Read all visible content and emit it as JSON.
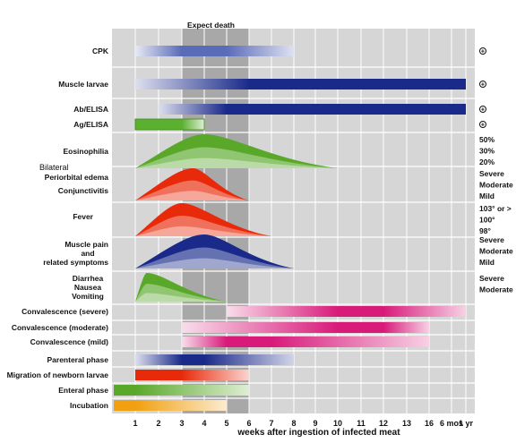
{
  "chart_data": {
    "type": "gantt",
    "annotation": "Expect death",
    "xlabel": "weeks after ingestion of infected meat",
    "x_ticks": [
      "1",
      "2",
      "3",
      "4",
      "5",
      "6",
      "7",
      "8",
      "9",
      "10",
      "11",
      "12",
      "13",
      "16",
      "6 mos",
      "1 yr"
    ],
    "shaded_band": {
      "from": "3",
      "to": "6"
    },
    "rows": [
      {
        "label": "CPK",
        "kind": "bar",
        "color": "#5a6bb8",
        "start": "1",
        "peak_start": "3",
        "peak_end": "5",
        "end": "8",
        "note": "+"
      },
      {
        "label": "Muscle larvae",
        "kind": "bar",
        "color": "#1a2a8a",
        "start": "1",
        "peak_start": "6",
        "peak_end": "1 yr",
        "end": "1 yr",
        "note": "+"
      },
      {
        "label": "Ab/ELISA",
        "kind": "bar",
        "color": "#1a2a8a",
        "start": "2",
        "peak_start": "5",
        "peak_end": "1 yr",
        "end": "1 yr",
        "note": "+"
      },
      {
        "label": "Ag/ELISA",
        "kind": "bar",
        "color": "#5cb030",
        "start": "1",
        "peak_start": "1",
        "peak_end": "3",
        "end": "4",
        "note": "+"
      },
      {
        "label": "Eosinophilia",
        "kind": "area",
        "color": "#5aa82a",
        "start": "1",
        "peak": "4",
        "end": "10",
        "levels": [
          "50%",
          "30%",
          "20%"
        ]
      },
      {
        "label": "Periorbital edema",
        "kind": "area",
        "color": "#e82a0a",
        "start": "1",
        "peak": "3.5",
        "end": "6",
        "levels": [
          "Severe",
          "Moderate",
          "Mild"
        ]
      },
      {
        "label": "Conjunctivitis",
        "kind": "area",
        "color": "#e82a0a",
        "start": "1",
        "peak": "3.5",
        "end": "6",
        "levels": []
      },
      {
        "label": "Fever",
        "kind": "area",
        "color": "#e82a0a",
        "start": "1",
        "peak": "3",
        "end": "7",
        "levels": [
          "103° or >",
          "100°",
          "98°"
        ]
      },
      {
        "label": "Muscle pain and related symptoms",
        "kind": "area",
        "color": "#1a2a8a",
        "start": "1",
        "peak": "4",
        "end": "8",
        "levels": [
          "Severe",
          "Moderate",
          "Mild"
        ]
      },
      {
        "label": "Diarrhea",
        "kind": "area",
        "color": "#5aa82a",
        "start": "1",
        "peak": "1.5",
        "end": "5",
        "levels": [
          "Severe",
          "Moderate"
        ]
      },
      {
        "label": "Nausea",
        "kind": "area",
        "color": "#5aa82a",
        "start": "1",
        "peak": "1.5",
        "end": "5",
        "levels": []
      },
      {
        "label": "Vomiting",
        "kind": "area",
        "color": "#5aa82a",
        "start": "1",
        "peak": "1.5",
        "end": "5",
        "levels": []
      },
      {
        "label": "Convalescence (severe)",
        "kind": "bar",
        "color": "#d81a7a",
        "start": "5",
        "peak_start": "10",
        "peak_end": "12",
        "end": "1 yr"
      },
      {
        "label": "Convalescence (moderate)",
        "kind": "bar",
        "color": "#d81a7a",
        "start": "3",
        "peak_start": "10",
        "peak_end": "12",
        "end": "16"
      },
      {
        "label": "Convalescence (mild)",
        "kind": "bar",
        "color": "#d81a7a",
        "start": "3",
        "peak_start": "5",
        "peak_end": "7",
        "end": "16"
      },
      {
        "label": "Parenteral phase",
        "kind": "bar",
        "color": "#1a2a8a",
        "start": "1",
        "peak_start": "3",
        "peak_end": "4",
        "end": "8"
      },
      {
        "label": "Migration of newborn larvae",
        "kind": "bar",
        "color": "#e82a0a",
        "start": "1",
        "peak_start": "1",
        "peak_end": "3",
        "end": "6"
      },
      {
        "label": "Enteral phase",
        "kind": "bar",
        "color": "#5aa82a",
        "start": "0",
        "peak_start": "0",
        "peak_end": "1",
        "end": "6"
      },
      {
        "label": "Incubation",
        "kind": "bar",
        "color": "#f0a010",
        "start": "0",
        "peak_start": "0",
        "peak_end": "1",
        "end": "5"
      }
    ]
  },
  "labels": {
    "bilateral": "Bilateral",
    "muscle_pain_1": "Muscle pain",
    "muscle_pain_2": "and",
    "muscle_pain_3": "related symptoms"
  }
}
